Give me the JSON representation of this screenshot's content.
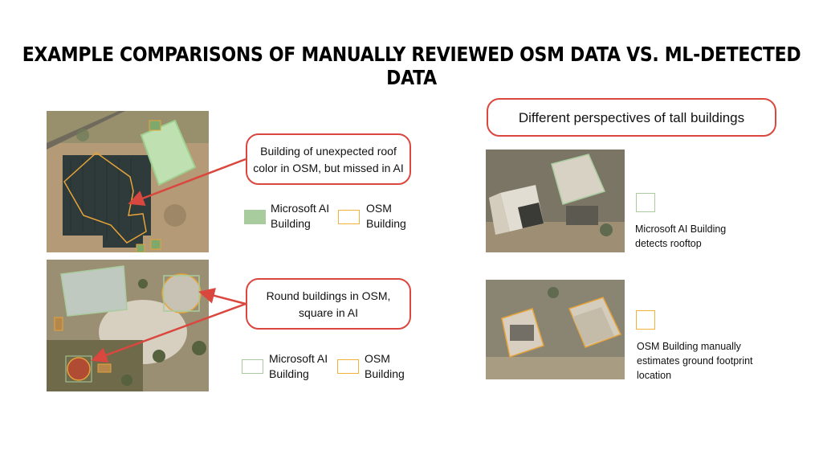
{
  "title": "EXAMPLE COMPARISONS OF MANUALLY REVIEWED OSM DATA VS. ML-DETECTED DATA",
  "callouts": {
    "roof_color": {
      "line1": "Building of unexpected roof",
      "line2": "color in OSM, but missed in AI"
    },
    "round": {
      "line1": "Round buildings in OSM,",
      "line2": "square in AI"
    },
    "perspectives": "Different perspectives of tall buildings"
  },
  "legend_top": {
    "ms_line1": "Microsoft AI",
    "ms_line2": "Building",
    "osm_line1": "OSM",
    "osm_line2": "Building"
  },
  "legend_bottom": {
    "ms_line1": "Microsoft AI",
    "ms_line2": "Building",
    "osm_line1": "OSM",
    "osm_line2": "Building"
  },
  "right_notes": {
    "ms_line1": "Microsoft AI Building",
    "ms_line2": "detects rooftop",
    "osm_line1": "OSM Building  manually",
    "osm_line2": "estimates ground footprint",
    "osm_line3": "location"
  },
  "colors": {
    "accent_red": "#d9473f",
    "ms_green": "#a9cc9e",
    "osm_orange": "#f0b23a"
  }
}
